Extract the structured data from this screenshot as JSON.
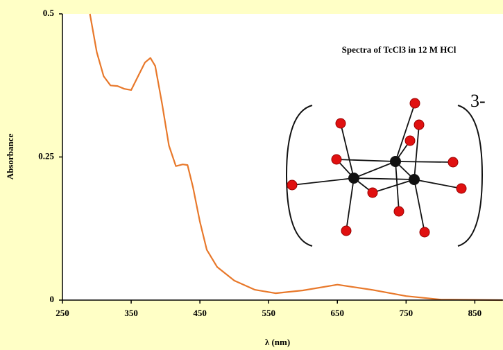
{
  "chart_data": {
    "type": "line",
    "title": "Spectra of TcCl3 in 12 M HCl",
    "annotations": [
      "3-"
    ],
    "x_label": "λ (nm)",
    "y_label": "Absorbance",
    "x": [
      290,
      300,
      310,
      320,
      330,
      340,
      350,
      360,
      370,
      378,
      385,
      395,
      405,
      415,
      425,
      432,
      440,
      450,
      460,
      475,
      500,
      530,
      560,
      600,
      650,
      700,
      750,
      800,
      890
    ],
    "values": [
      0.5,
      0.433,
      0.391,
      0.375,
      0.374,
      0.369,
      0.367,
      0.391,
      0.415,
      0.423,
      0.409,
      0.343,
      0.27,
      0.234,
      0.237,
      0.236,
      0.197,
      0.137,
      0.088,
      0.058,
      0.034,
      0.018,
      0.012,
      0.017,
      0.027,
      0.018,
      0.007,
      0.001,
      0
    ],
    "color": "#e8782a",
    "xlim": [
      250,
      891
    ],
    "ylim": [
      0,
      0.5
    ],
    "xticks": [
      250,
      350,
      450,
      550,
      650,
      750,
      850
    ],
    "yticks": [
      0,
      0.25,
      0.5
    ]
  }
}
